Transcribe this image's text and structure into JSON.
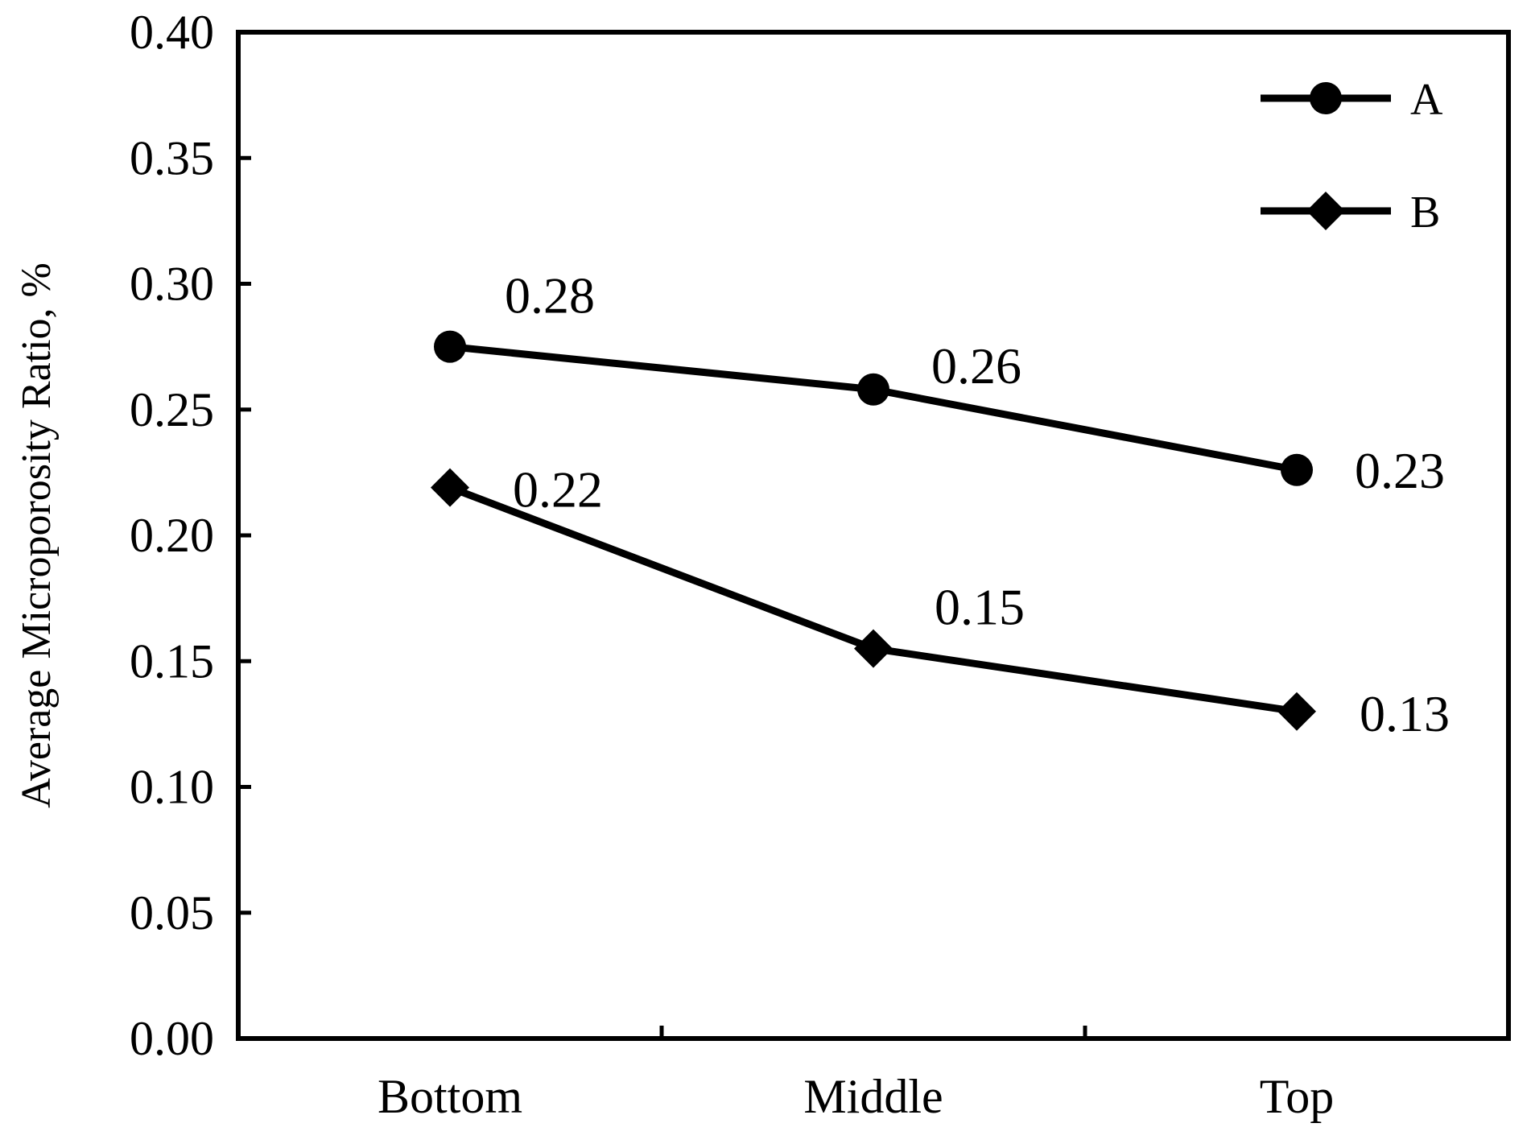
{
  "chart_data": {
    "type": "line",
    "categories": [
      "Bottom",
      "Middle",
      "Top"
    ],
    "series": [
      {
        "name": "A",
        "marker": "circle",
        "values": [
          0.275,
          0.258,
          0.226
        ],
        "labels": [
          "0.28",
          "0.26",
          "0.23"
        ]
      },
      {
        "name": "B",
        "marker": "diamond",
        "values": [
          0.219,
          0.155,
          0.13
        ],
        "labels": [
          "0.22",
          "0.15",
          "0.13"
        ]
      }
    ],
    "title": "",
    "xlabel": "",
    "ylabel": "Average Microporosity Ratio, %",
    "ylim": [
      0,
      0.4
    ],
    "yticks": [
      "0.00",
      "0.05",
      "0.10",
      "0.15",
      "0.20",
      "0.25",
      "0.30",
      "0.35",
      "0.40"
    ],
    "grid": false,
    "legend_position": "top-right",
    "line_color": "#000000"
  }
}
